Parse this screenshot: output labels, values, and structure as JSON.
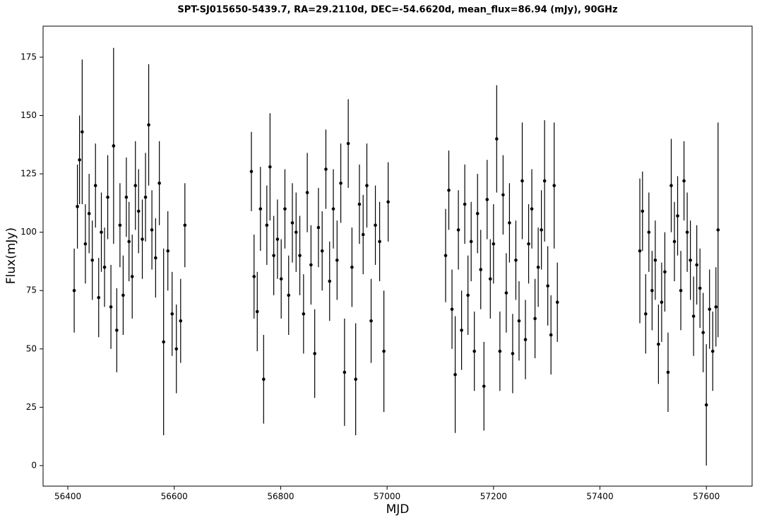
{
  "chart_data": {
    "type": "scatter",
    "title": "SPT-SJ015650-5439.7, RA=29.2110d, DEC=-54.6620d, mean_flux=86.94 (mJy), 90GHz",
    "x_label": "MJD",
    "y_label": "Flux(mJy)",
    "color": "#000000",
    "xlim": [
      56353.5,
      57686
    ],
    "ylim": [
      -8.8,
      188.3
    ],
    "xticks": [
      56400,
      56600,
      56800,
      57000,
      57200,
      57400,
      57600
    ],
    "yticks": [
      0,
      25,
      50,
      75,
      100,
      125,
      150,
      175
    ],
    "x": [
      56412,
      56418,
      56422,
      56427,
      56433,
      56440,
      56446,
      56452,
      56458,
      56463,
      56469,
      56475,
      56481,
      56486,
      56492,
      56498,
      56504,
      56510,
      56515,
      56521,
      56527,
      56533,
      56540,
      56546,
      56552,
      56558,
      56565,
      56572,
      56580,
      56588,
      56596,
      56604,
      56612,
      56620,
      56745,
      56750,
      56756,
      56762,
      56768,
      56774,
      56780,
      56787,
      56794,
      56801,
      56808,
      56815,
      56822,
      56829,
      56836,
      56843,
      56850,
      56857,
      56864,
      56871,
      56878,
      56885,
      56892,
      56899,
      56906,
      56913,
      56920,
      56927,
      56934,
      56941,
      56948,
      56955,
      56962,
      56970,
      56978,
      56986,
      56994,
      57002,
      57110,
      57116,
      57122,
      57128,
      57134,
      57140,
      57146,
      57152,
      57158,
      57164,
      57170,
      57176,
      57182,
      57188,
      57194,
      57200,
      57206,
      57212,
      57218,
      57224,
      57230,
      57236,
      57242,
      57248,
      57254,
      57260,
      57266,
      57272,
      57278,
      57284,
      57290,
      57296,
      57302,
      57308,
      57314,
      57320,
      57475,
      57480,
      57486,
      57492,
      57498,
      57504,
      57510,
      57516,
      57522,
      57528,
      57534,
      57540,
      57546,
      57552,
      57558,
      57564,
      57570,
      57576,
      57582,
      57588,
      57594,
      57600,
      57606,
      57612,
      57618,
      57622
    ],
    "values": [
      75,
      111,
      131,
      143,
      95,
      108,
      88,
      120,
      72,
      100,
      85,
      115,
      68,
      137,
      58,
      103,
      73,
      115,
      96,
      81,
      120,
      109,
      97,
      115,
      146,
      101,
      89,
      121,
      53,
      92,
      65,
      50,
      62,
      103,
      126,
      81,
      66,
      110,
      37,
      103,
      128,
      90,
      97,
      80,
      110,
      73,
      104,
      100,
      90,
      65,
      117,
      86,
      48,
      102,
      92,
      127,
      79,
      110,
      88,
      121,
      40,
      138,
      85,
      37,
      112,
      99,
      120,
      62,
      103,
      96,
      49,
      113,
      90,
      118,
      67,
      39,
      101,
      58,
      112,
      73,
      96,
      49,
      108,
      84,
      34,
      114,
      80,
      95,
      140,
      49,
      116,
      74,
      104,
      48,
      88,
      62,
      122,
      54,
      95,
      110,
      63,
      85,
      101,
      122,
      77,
      56,
      120,
      70,
      92,
      109,
      65,
      100,
      75,
      88,
      52,
      70,
      83,
      40,
      120,
      96,
      107,
      75,
      122,
      100,
      88,
      64,
      86,
      76,
      57,
      26,
      67,
      49,
      68,
      101
    ],
    "errors": [
      18,
      18,
      19,
      31,
      17,
      17,
      17,
      18,
      17,
      17,
      17,
      18,
      18,
      42,
      18,
      18,
      17,
      17,
      17,
      18,
      19,
      18,
      17,
      19,
      26,
      17,
      17,
      18,
      40,
      17,
      18,
      19,
      18,
      18,
      17,
      18,
      17,
      18,
      19,
      17,
      23,
      17,
      17,
      17,
      17,
      17,
      17,
      17,
      17,
      17,
      17,
      17,
      19,
      17,
      17,
      17,
      17,
      17,
      17,
      17,
      23,
      19,
      17,
      24,
      17,
      17,
      18,
      18,
      17,
      17,
      26,
      17,
      20,
      17,
      17,
      25,
      17,
      17,
      17,
      17,
      17,
      17,
      17,
      17,
      19,
      17,
      17,
      17,
      23,
      17,
      17,
      17,
      17,
      17,
      17,
      17,
      25,
      17,
      17,
      17,
      17,
      17,
      17,
      26,
      17,
      17,
      27,
      17,
      31,
      17,
      17,
      17,
      17,
      17,
      17,
      17,
      17,
      17,
      20,
      17,
      17,
      17,
      17,
      17,
      17,
      17,
      17,
      17,
      17,
      26,
      17,
      17,
      17,
      46
    ]
  }
}
